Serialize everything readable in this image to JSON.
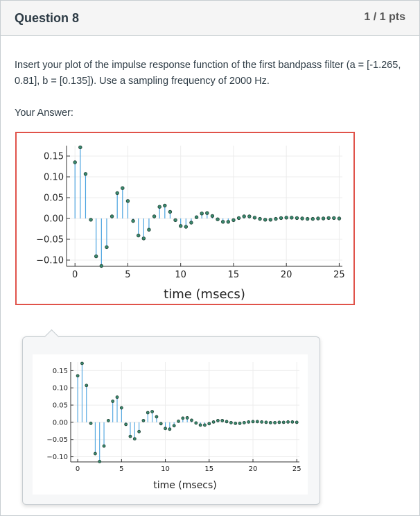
{
  "question": {
    "title": "Question 8",
    "points": "1 / 1 pts",
    "text": "Insert your plot of the impulse response function of the first bandpass filter (a = [-1.265, 0.81], b = [0.135]).  Use a sampling frequency of 2000 Hz.",
    "answer_label": "Your Answer:"
  },
  "chart_data": {
    "type": "scatter",
    "xlabel": "time (msecs)",
    "ylabel": "",
    "xlim": [
      -0.8,
      25.3
    ],
    "ylim": [
      -0.115,
      0.175
    ],
    "xticks": [
      0,
      5,
      10,
      15,
      20,
      25
    ],
    "yticks": [
      -0.1,
      -0.05,
      0.0,
      0.05,
      0.1,
      0.15
    ],
    "ytick_labels": [
      "−0.10",
      "−0.05",
      "0.00",
      "0.05",
      "0.10",
      "0.15"
    ],
    "grid": true,
    "colors": {
      "stem": "#4aa3df",
      "marker": "#3a8a6e",
      "marker_edge": "#1e3d33"
    },
    "x": [
      0,
      0.5,
      1,
      1.5,
      2,
      2.5,
      3,
      3.5,
      4,
      4.5,
      5,
      5.5,
      6,
      6.5,
      7,
      7.5,
      8,
      8.5,
      9,
      9.5,
      10,
      10.5,
      11,
      11.5,
      12,
      12.5,
      13,
      13.5,
      14,
      14.5,
      15,
      15.5,
      16,
      16.5,
      17,
      17.5,
      18,
      18.5,
      19,
      19.5,
      20,
      20.5,
      21,
      21.5,
      22,
      22.5,
      23,
      23.5,
      24,
      24.5,
      25
    ],
    "values": [
      0.135,
      0.171,
      0.107,
      -0.003,
      -0.091,
      -0.114,
      -0.069,
      0.005,
      0.061,
      0.073,
      0.042,
      -0.006,
      -0.041,
      -0.048,
      -0.027,
      0.005,
      0.028,
      0.031,
      0.016,
      -0.004,
      -0.018,
      -0.02,
      -0.01,
      0.003,
      0.012,
      0.013,
      0.006,
      -0.002,
      -0.008,
      -0.008,
      -0.004,
      0.001,
      0.005,
      0.005,
      0.002,
      -0.001,
      -0.003,
      -0.003,
      -0.001,
      0.001,
      0.002,
      0.002,
      0.001,
      0.0,
      -0.001,
      -0.001,
      0.0,
      0.0,
      0.001,
      0.001,
      0.0
    ]
  }
}
